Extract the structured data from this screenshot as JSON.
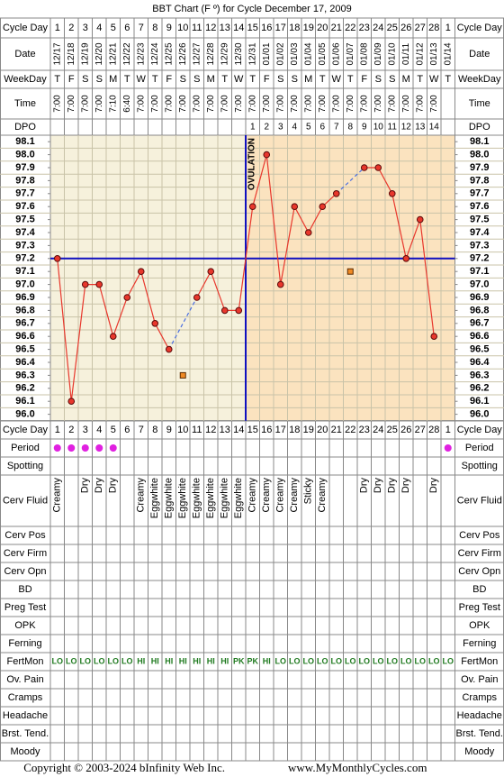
{
  "title": "BBT Chart (F º) for Cycle December 17, 2009",
  "row_labels": {
    "cycle_day": "Cycle Day",
    "date": "Date",
    "weekday": "WeekDay",
    "time": "Time",
    "dpo": "DPO",
    "period": "Period",
    "spotting": "Spotting",
    "cerv_fluid": "Cerv Fluid",
    "cerv_pos": "Cerv Pos",
    "cerv_firm": "Cerv Firm",
    "cerv_opn": "Cerv Opn",
    "bd": "BD",
    "preg_test": "Preg Test",
    "opk": "OPK",
    "ferning": "Ferning",
    "fertmon": "FertMon",
    "ov_pain": "Ov. Pain",
    "cramps": "Cramps",
    "headache": "Headache",
    "brst_tend": "Brst. Tend.",
    "moody": "Moody"
  },
  "cycle_days": [
    1,
    2,
    3,
    4,
    5,
    6,
    7,
    8,
    9,
    10,
    11,
    12,
    13,
    14,
    15,
    16,
    17,
    18,
    19,
    20,
    21,
    22,
    23,
    24,
    25,
    26,
    27,
    28,
    1
  ],
  "dates": [
    "12/17",
    "12/18",
    "12/19",
    "12/20",
    "12/21",
    "12/22",
    "12/23",
    "12/24",
    "12/25",
    "12/26",
    "12/27",
    "12/28",
    "12/29",
    "12/30",
    "12/31",
    "01/01",
    "01/02",
    "01/03",
    "01/04",
    "01/05",
    "01/06",
    "01/07",
    "01/08",
    "01/09",
    "01/10",
    "01/11",
    "01/12",
    "01/13",
    "01/14"
  ],
  "weekdays": [
    "T",
    "F",
    "S",
    "S",
    "M",
    "T",
    "W",
    "T",
    "F",
    "S",
    "S",
    "M",
    "T",
    "W",
    "T",
    "F",
    "S",
    "S",
    "M",
    "T",
    "W",
    "T",
    "F",
    "S",
    "S",
    "M",
    "T",
    "W",
    "T"
  ],
  "times": [
    "7:00",
    "7:00",
    "7:00",
    "7:00",
    "7:10",
    "6:40",
    "7:00",
    "7:00",
    "7:00",
    "7:00",
    "7:00",
    "7:00",
    "7:00",
    "7:00",
    "7:00",
    "7:00",
    "7:00",
    "7:00",
    "7:00",
    "7:00",
    "7:00",
    "7:00",
    "7:00",
    "7:00",
    "7:00",
    "7:00",
    "7:00",
    "7:00",
    null
  ],
  "dpo": [
    null,
    null,
    null,
    null,
    null,
    null,
    null,
    null,
    null,
    null,
    null,
    null,
    null,
    null,
    1,
    2,
    3,
    4,
    5,
    6,
    7,
    8,
    9,
    10,
    11,
    12,
    13,
    14,
    null
  ],
  "chart_data": {
    "type": "line",
    "values": [
      97.2,
      96.1,
      97.0,
      97.0,
      96.6,
      96.9,
      97.1,
      96.7,
      96.5,
      null,
      96.9,
      97.1,
      96.8,
      96.8,
      97.6,
      98.0,
      97.0,
      97.6,
      97.4,
      97.6,
      97.7,
      null,
      97.9,
      97.9,
      97.7,
      97.2,
      97.5,
      96.6,
      null
    ],
    "discarded": [
      null,
      null,
      null,
      null,
      null,
      null,
      null,
      null,
      null,
      96.3,
      null,
      null,
      null,
      null,
      null,
      null,
      null,
      null,
      null,
      null,
      null,
      97.1,
      null,
      null,
      null,
      null,
      null,
      null,
      null
    ],
    "color": "#e8372c",
    "discarded_color": "#f08a24",
    "coverline": 97.2,
    "ovulation_label": "OVULATION",
    "ylim": [
      95.95,
      98.15
    ],
    "yticks": [
      {
        "value": 96.0,
        "label": "96.0"
      },
      96.1,
      96.2,
      96.3,
      96.4,
      96.5,
      96.6,
      96.7,
      96.8,
      96.9,
      {
        "value": 97.0,
        "label": "97.0"
      },
      97.1,
      97.2,
      97.3,
      97.4,
      97.5,
      97.6,
      97.7,
      97.8,
      97.9,
      {
        "value": 98.0,
        "label": "98.0"
      },
      98.1
    ]
  },
  "period": [
    true,
    true,
    true,
    true,
    true,
    false,
    false,
    false,
    false,
    false,
    false,
    false,
    false,
    false,
    false,
    false,
    false,
    false,
    false,
    false,
    false,
    false,
    false,
    false,
    false,
    false,
    false,
    false,
    true
  ],
  "cerv_fluid": [
    "Creamy",
    null,
    "Dry",
    "Dry",
    "Dry",
    null,
    "Creamy",
    "Eggwhite",
    "Eggwhite",
    "Eggwhite",
    "Eggwhite",
    "Eggwhite",
    "Eggwhite",
    "Eggwhite",
    "Creamy",
    "Creamy",
    "Creamy",
    "Creamy",
    "Sticky",
    "Creamy",
    null,
    null,
    "Dry",
    "Dry",
    "Dry",
    "Dry",
    null,
    "Dry",
    null
  ],
  "fertmon": [
    "LO",
    "LO",
    "LO",
    "LO",
    "LO",
    "LO",
    "HI",
    "HI",
    "HI",
    "HI",
    "HI",
    "HI",
    "HI",
    "PK",
    "PK",
    "HI",
    "LO",
    "LO",
    "LO",
    "LO",
    "LO",
    "LO",
    "LO",
    "LO",
    "LO",
    "LO",
    "LO",
    "LO",
    "LO"
  ],
  "footer": {
    "copyright": "Copyright © 2003-2024 bInfinity Web Inc.",
    "website": "www.MyMonthlyCycles.com"
  }
}
